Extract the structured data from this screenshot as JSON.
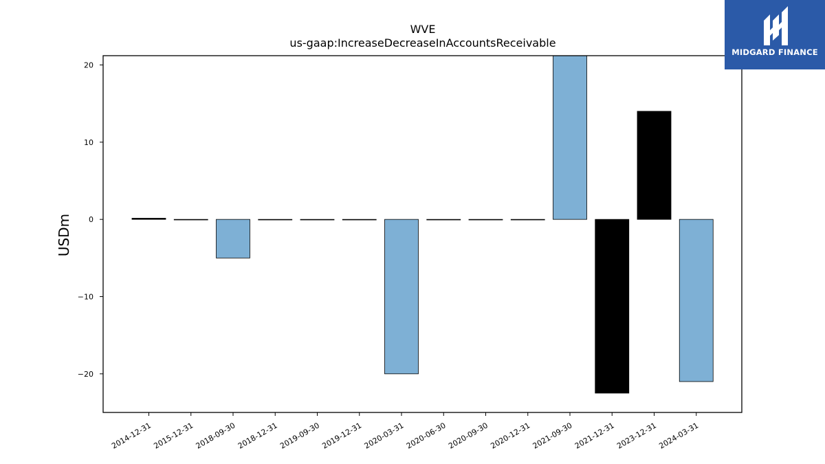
{
  "chart_data": {
    "type": "bar",
    "title": "WVE",
    "subtitle": "us-gaap:IncreaseDecreaseInAccountsReceivable",
    "xlabel": "",
    "ylabel": "USDm",
    "ylim": [
      -25,
      21.2
    ],
    "yticks": [
      20,
      10,
      0,
      -10,
      -20
    ],
    "ytick_labels": [
      "20",
      "10",
      "0",
      "−10",
      "−20"
    ],
    "grid": false,
    "legend": "none",
    "categories": [
      "2014-12-31",
      "2015-12-31",
      "2018-09-30",
      "2018-12-31",
      "2019-09-30",
      "2019-12-31",
      "2020-03-31",
      "2020-06-30",
      "2020-09-30",
      "2020-12-31",
      "2021-09-30",
      "2021-12-31",
      "2023-12-31",
      "2024-03-31"
    ],
    "values": [
      0.15,
      0,
      -5,
      0,
      0,
      0,
      -20,
      0,
      0,
      0,
      21.2,
      -22.5,
      14,
      -21
    ],
    "bar_colors": [
      "#000000",
      "#7eb0d5",
      "#7eb0d5",
      "#7eb0d5",
      "#7eb0d5",
      "#7eb0d5",
      "#7eb0d5",
      "#7eb0d5",
      "#7eb0d5",
      "#7eb0d5",
      "#7eb0d5",
      "#000000",
      "#000000",
      "#7eb0d5"
    ]
  },
  "logo": {
    "text": "MIDGARD FINANCE",
    "color": "#2b5aa8"
  }
}
